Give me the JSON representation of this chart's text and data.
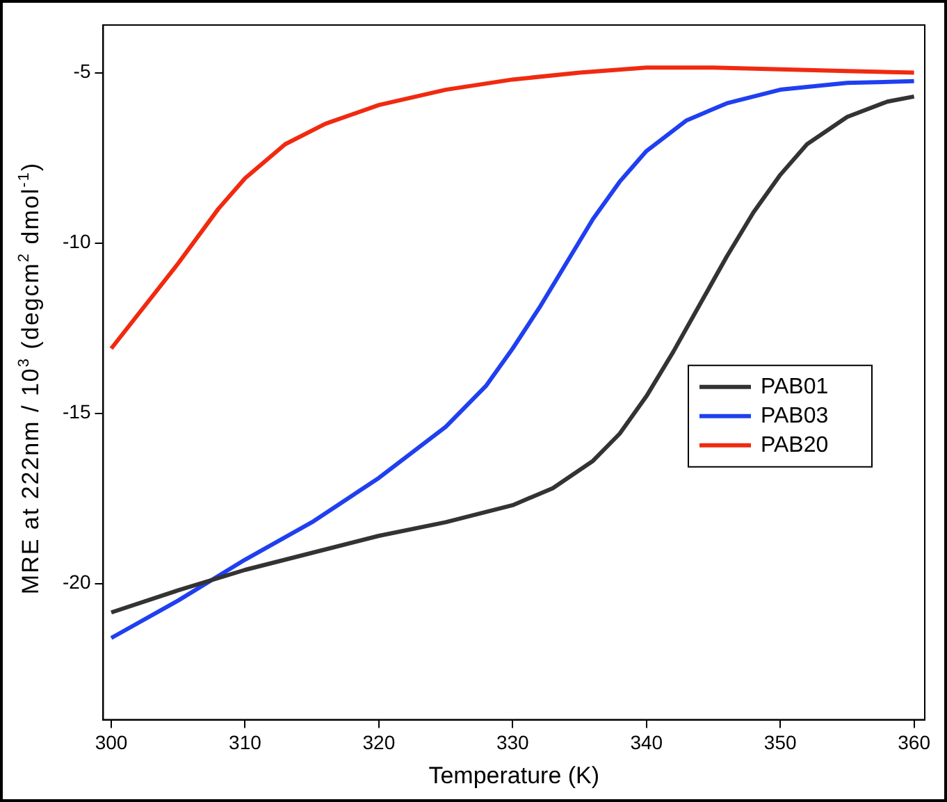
{
  "chart_data": {
    "type": "line",
    "xlabel": "Temperature (K)",
    "ylabel": "MRE at 222nm / 10$^{3}$ (degcm$^{2}$ dmol$^{-1}$)",
    "xlim": [
      299.4,
      360.8
    ],
    "ylim": [
      -24,
      -3.6
    ],
    "xticks": [
      300,
      310,
      320,
      330,
      340,
      350,
      360
    ],
    "yticks": [
      -20,
      -15,
      -10,
      -5
    ],
    "grid": false,
    "legend": "right",
    "marker": "none",
    "line_style": "solid",
    "series": [
      {
        "name": "PAB01",
        "color": "#333333",
        "x": [
          300,
          305,
          310,
          315,
          320,
          325,
          330,
          333,
          336,
          338,
          340,
          342,
          344,
          346,
          348,
          350,
          352,
          355,
          358,
          360
        ],
        "values": [
          -20.85,
          -20.2,
          -19.6,
          -19.1,
          -18.6,
          -18.2,
          -17.7,
          -17.2,
          -16.4,
          -15.6,
          -14.5,
          -13.2,
          -11.8,
          -10.4,
          -9.1,
          -8.0,
          -7.1,
          -6.3,
          -5.85,
          -5.7
        ]
      },
      {
        "name": "PAB03",
        "color": "#1f3ff0",
        "x": [
          300,
          305,
          310,
          315,
          320,
          325,
          328,
          330,
          332,
          334,
          336,
          338,
          340,
          343,
          346,
          350,
          355,
          360
        ],
        "values": [
          -21.6,
          -20.5,
          -19.3,
          -18.2,
          -16.9,
          -15.4,
          -14.2,
          -13.1,
          -11.9,
          -10.6,
          -9.3,
          -8.2,
          -7.3,
          -6.4,
          -5.9,
          -5.5,
          -5.3,
          -5.25
        ]
      },
      {
        "name": "PAB20",
        "color": "#f02a10",
        "x": [
          300,
          302,
          305,
          308,
          310,
          313,
          316,
          320,
          325,
          330,
          335,
          340,
          345,
          350,
          355,
          360
        ],
        "values": [
          -13.1,
          -12.1,
          -10.6,
          -9.0,
          -8.1,
          -7.1,
          -6.5,
          -5.95,
          -5.5,
          -5.2,
          -5.0,
          -4.85,
          -4.85,
          -4.9,
          -4.95,
          -5.0
        ]
      }
    ]
  }
}
